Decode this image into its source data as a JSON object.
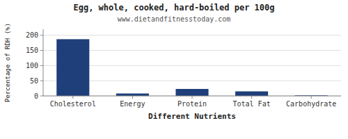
{
  "chart_data": {
    "type": "bar",
    "title": "Egg, whole, cooked, hard-boiled per 100g",
    "subtitle": "www.dietandfitnesstoday.com",
    "xlabel": "Different Nutrients",
    "ylabel": "Percentage of RDH (%)",
    "categories": [
      "Cholesterol",
      "Energy",
      "Protein",
      "Total Fat",
      "Carbohydrate"
    ],
    "values": [
      187,
      8,
      23,
      15,
      2
    ],
    "color": "#1e3f7a",
    "ylim": [
      0,
      220
    ],
    "yticks": [
      0,
      50,
      100,
      150,
      200
    ],
    "grid": true
  }
}
